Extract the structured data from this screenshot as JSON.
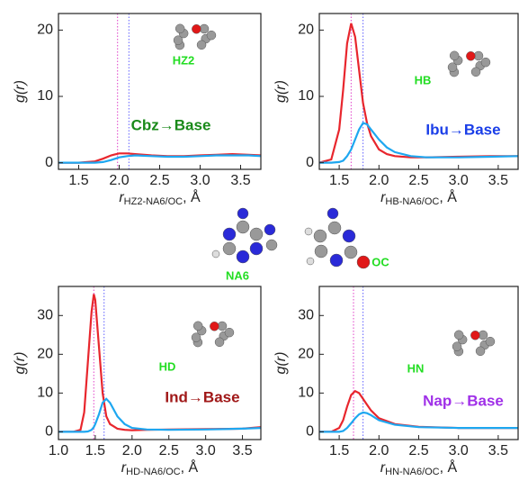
{
  "chart_data": [
    {
      "type": "line",
      "annotation": "Cbz→Base",
      "annotation_color": "#1a8a1a",
      "atom_label": "HZ2",
      "xlabel": [
        "r",
        "HZ2-NA6/OC",
        ", Å"
      ],
      "ylabel": "g(r)",
      "xlim": [
        1.25,
        3.75
      ],
      "ylim": [
        -1,
        22.5
      ],
      "xticks": [
        {
          "value": 1.5,
          "label": "1.5"
        },
        {
          "value": 2,
          "label": "2.0"
        },
        {
          "value": 2.5,
          "label": "2.5"
        },
        {
          "value": 3,
          "label": "3.0"
        },
        {
          "value": 3.5,
          "label": "3.5"
        }
      ],
      "yticks": [
        0,
        10,
        20
      ],
      "vlines": [
        {
          "x": 1.98,
          "color": "#e040c8"
        },
        {
          "x": 2.12,
          "color": "#6060ff"
        }
      ],
      "x": [
        1.25,
        1.5,
        1.7,
        1.8,
        1.9,
        2.0,
        2.1,
        2.2,
        2.4,
        2.6,
        2.8,
        3.0,
        3.2,
        3.4,
        3.6,
        3.75
      ],
      "series": [
        {
          "color": "#e8262d",
          "values": [
            0,
            0,
            0.2,
            0.6,
            1.1,
            1.4,
            1.4,
            1.3,
            1.1,
            1,
            1,
            1.1,
            1.2,
            1.3,
            1.2,
            1.1
          ]
        },
        {
          "color": "#1ea7f0",
          "values": [
            0,
            0,
            0,
            0.1,
            0.4,
            0.8,
            1,
            1.1,
            1,
            0.9,
            0.9,
            1,
            1.1,
            1.1,
            1.1,
            1
          ]
        }
      ]
    },
    {
      "type": "line",
      "annotation": "Ibu→Base",
      "annotation_color": "#1a3ee8",
      "atom_label": "HB",
      "xlabel": [
        "r",
        "HB-NA6/OC",
        ", Å"
      ],
      "ylabel": "g(r)",
      "xlim": [
        1.25,
        3.75
      ],
      "ylim": [
        -1,
        22.5
      ],
      "xticks": [
        {
          "value": 1.5,
          "label": "1.5"
        },
        {
          "value": 2,
          "label": "2.0"
        },
        {
          "value": 2.5,
          "label": "2.5"
        },
        {
          "value": 3,
          "label": "3.0"
        },
        {
          "value": 3.5,
          "label": "3.5"
        }
      ],
      "yticks": [
        0,
        10,
        20
      ],
      "vlines": [
        {
          "x": 1.65,
          "color": "#e040c8"
        },
        {
          "x": 1.8,
          "color": "#6060ff"
        }
      ],
      "x": [
        1.25,
        1.4,
        1.5,
        1.55,
        1.6,
        1.65,
        1.7,
        1.75,
        1.8,
        1.85,
        1.9,
        2.0,
        2.1,
        2.2,
        2.4,
        2.6,
        3.0,
        3.4,
        3.75
      ],
      "series": [
        {
          "color": "#e8262d",
          "values": [
            0,
            0.5,
            5,
            11,
            18,
            21,
            19,
            14,
            9,
            6,
            4,
            2,
            1.3,
            1,
            0.8,
            0.8,
            0.9,
            1,
            1
          ]
        },
        {
          "color": "#1ea7f0",
          "values": [
            0,
            0,
            0.1,
            0.3,
            1,
            2,
            3.5,
            5,
            6,
            5.8,
            5,
            3.5,
            2.3,
            1.6,
            1,
            0.8,
            0.8,
            0.9,
            1
          ]
        }
      ]
    },
    {
      "type": "line",
      "annotation": "Ind→Base",
      "annotation_color": "#a01818",
      "atom_label": "HD",
      "xlabel": [
        "r",
        "HD-NA6/OC",
        ", Å"
      ],
      "ylabel": "g(r)",
      "xlim": [
        1.0,
        3.75
      ],
      "ylim": [
        -2,
        37.5
      ],
      "xticks": [
        {
          "value": 1,
          "label": "1.0"
        },
        {
          "value": 1.5,
          "label": "1.5"
        },
        {
          "value": 2,
          "label": "2.0"
        },
        {
          "value": 2.5,
          "label": "2.5"
        },
        {
          "value": 3,
          "label": "3.0"
        },
        {
          "value": 3.5,
          "label": "3.5"
        }
      ],
      "yticks": [
        0,
        10,
        20,
        30
      ],
      "vlines": [
        {
          "x": 1.48,
          "color": "#e040c8"
        },
        {
          "x": 1.62,
          "color": "#6060ff"
        }
      ],
      "x": [
        1.0,
        1.2,
        1.3,
        1.35,
        1.4,
        1.45,
        1.48,
        1.5,
        1.55,
        1.6,
        1.65,
        1.7,
        1.8,
        1.9,
        2.0,
        2.2,
        2.5,
        3.0,
        3.5,
        3.75
      ],
      "series": [
        {
          "color": "#e8262d",
          "values": [
            0,
            0,
            0.5,
            5,
            18,
            31,
            35.5,
            34,
            22,
            10,
            4,
            2,
            0.8,
            0.5,
            0.4,
            0.5,
            0.6,
            0.7,
            0.8,
            1.2
          ]
        },
        {
          "color": "#1ea7f0",
          "values": [
            0,
            0,
            0,
            0,
            0.1,
            0.5,
            1.2,
            2,
            4.5,
            7.5,
            8.5,
            7.5,
            4,
            2,
            1,
            0.6,
            0.5,
            0.6,
            0.8,
            1
          ]
        }
      ]
    },
    {
      "type": "line",
      "annotation": "Nap→Base",
      "annotation_color": "#a030e8",
      "atom_label": "HN",
      "xlabel": [
        "r",
        "HN-NA6/OC",
        ", Å"
      ],
      "ylabel": "g(r)",
      "xlim": [
        1.25,
        3.75
      ],
      "ylim": [
        -2,
        37.5
      ],
      "xticks": [
        {
          "value": 1.5,
          "label": "1.5"
        },
        {
          "value": 2,
          "label": "2.0"
        },
        {
          "value": 2.5,
          "label": "2.5"
        },
        {
          "value": 3,
          "label": "3.0"
        },
        {
          "value": 3.5,
          "label": "3.5"
        }
      ],
      "yticks": [
        0,
        10,
        20,
        30
      ],
      "vlines": [
        {
          "x": 1.68,
          "color": "#e040c8"
        },
        {
          "x": 1.8,
          "color": "#6060ff"
        }
      ],
      "x": [
        1.25,
        1.4,
        1.5,
        1.55,
        1.6,
        1.65,
        1.7,
        1.75,
        1.8,
        1.85,
        1.9,
        2.0,
        2.2,
        2.5,
        3.0,
        3.5,
        3.75
      ],
      "series": [
        {
          "color": "#e8262d",
          "values": [
            0,
            0,
            1,
            3,
            6.5,
            9.5,
            10.5,
            10,
            8.5,
            7,
            5.5,
            3.5,
            2,
            1.3,
            1,
            1,
            1
          ]
        },
        {
          "color": "#1ea7f0",
          "values": [
            0,
            0,
            0,
            0.2,
            1,
            2.2,
            3.5,
            4.5,
            5,
            4.8,
            4.3,
            3,
            1.8,
            1.2,
            1,
            1,
            1
          ]
        }
      ]
    }
  ],
  "center_labels": [
    "NA6",
    "OC"
  ]
}
